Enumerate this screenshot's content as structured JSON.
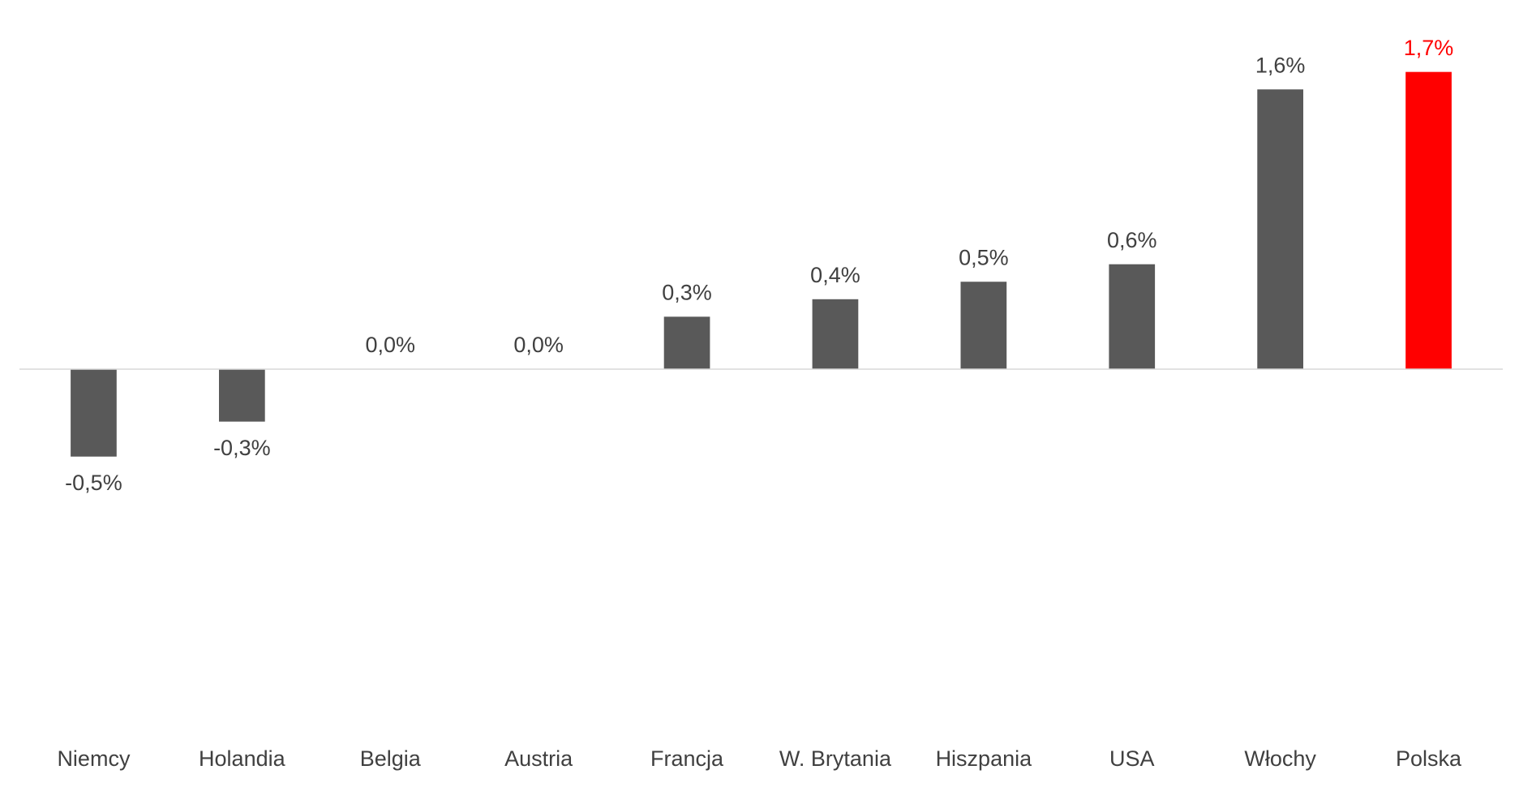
{
  "chart_data": {
    "type": "bar",
    "categories": [
      "Niemcy",
      "Holandia",
      "Belgia",
      "Austria",
      "Francja",
      "W. Brytania",
      "Hiszpania",
      "USA",
      "Włochy",
      "Polska"
    ],
    "values": [
      -0.5,
      -0.3,
      0.0,
      0.0,
      0.3,
      0.4,
      0.5,
      0.6,
      1.6,
      1.7
    ],
    "value_labels": [
      "-0,5%",
      "-0,3%",
      "0,0%",
      "0,0%",
      "0,3%",
      "0,4%",
      "0,5%",
      "0,6%",
      "1,6%",
      "1,7%"
    ],
    "colors": [
      "#595959",
      "#595959",
      "#595959",
      "#595959",
      "#595959",
      "#595959",
      "#595959",
      "#595959",
      "#595959",
      "#ff0000"
    ],
    "label_colors": [
      "#404040",
      "#404040",
      "#404040",
      "#404040",
      "#404040",
      "#404040",
      "#404040",
      "#404040",
      "#404040",
      "#ff0000"
    ],
    "ylim": [
      -2,
      2
    ]
  }
}
